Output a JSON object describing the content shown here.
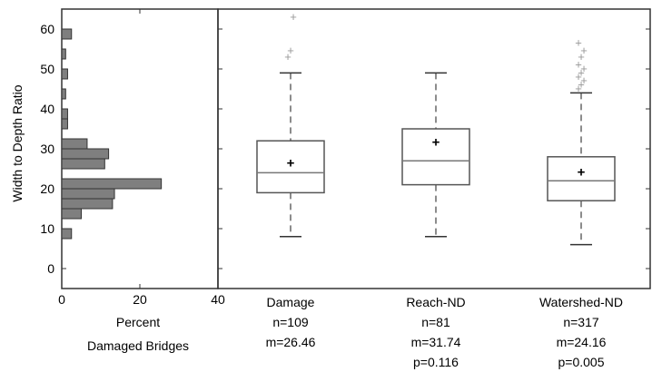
{
  "chart_data": [
    {
      "type": "bar",
      "orientation": "horizontal",
      "ylabel": "Width to Depth Ratio",
      "xlabel_lines": [
        "Percent",
        "Damaged Bridges"
      ],
      "xlim": [
        0,
        40
      ],
      "ylim": [
        -5,
        65
      ],
      "x_ticks": [
        "0",
        "20",
        "40"
      ],
      "y_ticks": [
        "0",
        "10",
        "20",
        "30",
        "40",
        "50",
        "60"
      ],
      "bins": [
        {
          "y_from": 7.5,
          "y_to": 10,
          "value": 2.5
        },
        {
          "y_from": 12.5,
          "y_to": 15,
          "value": 5
        },
        {
          "y_from": 15,
          "y_to": 17.5,
          "value": 13
        },
        {
          "y_from": 17.5,
          "y_to": 20,
          "value": 13.5
        },
        {
          "y_from": 20,
          "y_to": 22.5,
          "value": 25.5
        },
        {
          "y_from": 25,
          "y_to": 27.5,
          "value": 11
        },
        {
          "y_from": 27.5,
          "y_to": 30,
          "value": 12
        },
        {
          "y_from": 30,
          "y_to": 32.5,
          "value": 6.5
        },
        {
          "y_from": 35,
          "y_to": 37.5,
          "value": 1.5
        },
        {
          "y_from": 37.5,
          "y_to": 40,
          "value": 1.5
        },
        {
          "y_from": 42.5,
          "y_to": 45,
          "value": 1
        },
        {
          "y_from": 47.5,
          "y_to": 50,
          "value": 1.5
        },
        {
          "y_from": 52.5,
          "y_to": 55,
          "value": 1
        },
        {
          "y_from": 57.5,
          "y_to": 60,
          "value": 2.5
        }
      ]
    },
    {
      "type": "boxplot",
      "ylim": [
        -5,
        65
      ],
      "categories": [
        {
          "label": "Damage",
          "n": "n=109",
          "m": "m=26.46",
          "p": "",
          "min": 8,
          "q1": 19,
          "median": 24,
          "q3": 32,
          "max": 49,
          "mean": 26.5,
          "outliers": [
            53,
            54.5,
            63
          ]
        },
        {
          "label": "Reach-ND",
          "n": "n=81",
          "m": "m=31.74",
          "p": "p=0.116",
          "min": 8,
          "q1": 21,
          "median": 27,
          "q3": 35,
          "max": 49,
          "mean": 31.7,
          "outliers": []
        },
        {
          "label": "Watershed-ND",
          "n": "n=317",
          "m": "m=24.16",
          "p": "p=0.005",
          "min": 6,
          "q1": 17,
          "median": 22,
          "q3": 28,
          "max": 44,
          "mean": 24.2,
          "outliers": [
            45,
            46,
            47,
            48,
            49,
            50,
            51,
            53,
            54.5,
            56.5
          ]
        }
      ]
    }
  ]
}
